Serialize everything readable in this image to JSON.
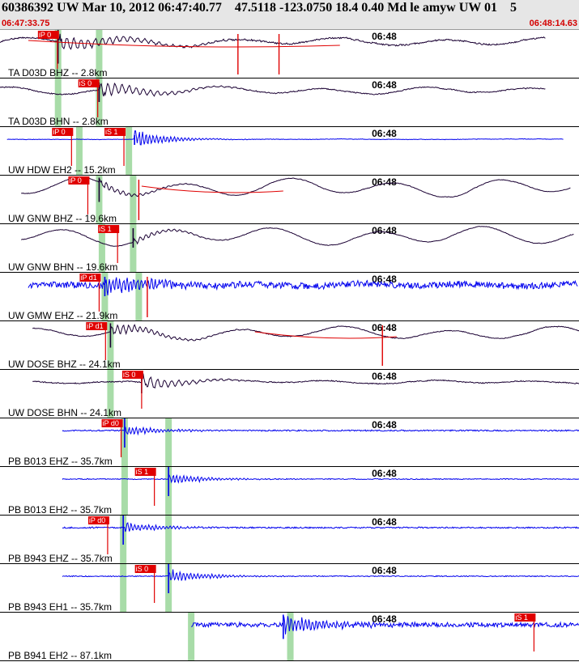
{
  "header": {
    "title": "60386392 UW Mar 10, 2012 06:47:40.77    47.5118 -123.0750 18.4 0.40 Md le amyw UW 01    5",
    "start_time": "06:47:33.75",
    "end_time": "06:48:14.63"
  },
  "colors": {
    "header_bg": "#e6e6e6",
    "time_text": "#d40000",
    "pick": "#e00000",
    "window": "#a8dca8",
    "dark_trace": "#1a0033",
    "blue_trace": "#0000ee"
  },
  "traces": [
    {
      "label": "TA D03D BHZ -- 2.8km",
      "tick": "06:48",
      "style": "dark",
      "picks": [
        {
          "text": "iP 0",
          "time": 4.05
        }
      ],
      "windows": [
        4.1,
        7.0
      ],
      "onset": 4.1,
      "samp": 3.8,
      "start": 0.0,
      "end": 38.5,
      "noise": 0.06,
      "lp": 0.35,
      "amp": 0.75,
      "decay": 4.5,
      "freq": 2.0,
      "sine": 0.4,
      "curve": [
        2.0,
        24.0
      ],
      "ticks": [
        16.8,
        19.7
      ]
    },
    {
      "label": "TA D03D BHN -- 2.8km",
      "tick": "06:48",
      "style": "dark",
      "picks": [
        {
          "text": "iS 0",
          "time": 6.9
        }
      ],
      "windows": [
        4.1,
        7.0
      ],
      "onset": 7.0,
      "samp": 2.0,
      "start": 0.0,
      "end": 38.5,
      "noise": 0.04,
      "lp": 0.35,
      "amp": 0.75,
      "decay": 3.5,
      "freq": 2.0,
      "sine": 0.35,
      "curve": [],
      "ticks": []
    },
    {
      "label": "UW HDW EH2 -- 15.2km",
      "tick": "06:48",
      "style": "blue",
      "picks": [
        {
          "text": "iP 0",
          "time": 5.05
        },
        {
          "text": "iS 1",
          "time": 8.75
        }
      ],
      "windows": [
        5.6,
        9.1
      ],
      "onset": 9.5,
      "samp": 1.0,
      "start": 0.5,
      "end": 39.8,
      "noise": 0.02,
      "lp": 0.15,
      "amp": 0.9,
      "decay": 2.0,
      "freq": 4.0,
      "sine": 0.0,
      "curve": [],
      "ticks": []
    },
    {
      "label": "UW GNW BHZ -- 19.6km",
      "tick": "06:48",
      "style": "dark",
      "picks": [
        {
          "text": "iP 0",
          "time": 6.2
        }
      ],
      "windows": [
        7.0,
        9.4
      ],
      "onset": 7.0,
      "samp": 2.5,
      "start": 1.5,
      "end": 40.3,
      "noise": 0.02,
      "lp": 0.35,
      "amp": 0.4,
      "decay": 2.5,
      "freq": 2.5,
      "sine": 0.85,
      "curve": [
        10.0,
        20.0
      ],
      "ticks": [
        9.8
      ]
    },
    {
      "label": "UW GNW BHN -- 19.6km",
      "tick": "06:48",
      "style": "dark",
      "picks": [
        {
          "text": "iS 1",
          "time": 8.3
        }
      ],
      "windows": [
        7.2,
        9.4
      ],
      "onset": 9.4,
      "samp": 2.0,
      "start": 1.5,
      "end": 40.5,
      "noise": 0.02,
      "lp": 0.35,
      "amp": 0.35,
      "decay": 2.5,
      "freq": 2.5,
      "sine": 0.85,
      "curve": [],
      "ticks": []
    },
    {
      "label": "UW GMW EHZ -- 21.9km",
      "tick": "06:48",
      "style": "blue",
      "picks": [
        {
          "text": "iP d1",
          "time": 7.0
        }
      ],
      "windows": [
        7.4,
        9.8
      ],
      "onset": 7.4,
      "samp": 2.0,
      "start": 2.0,
      "end": 40.8,
      "noise": 0.28,
      "lp": 0.0,
      "amp": 0.9,
      "decay": 3.5,
      "freq": 4.0,
      "sine": 0.12,
      "curve": [],
      "ticks": [
        10.4
      ]
    },
    {
      "label": "UW DOSE BHZ -- 24.1km",
      "tick": "06:48",
      "style": "dark",
      "picks": [
        {
          "text": "iP d1",
          "time": 7.45
        }
      ],
      "windows": [
        7.8
      ],
      "onset": 7.8,
      "samp": 2.5,
      "start": 2.3,
      "end": 41.0,
      "noise": 0.03,
      "lp": 0.35,
      "amp": 0.6,
      "decay": 3.0,
      "freq": 2.5,
      "sine": 0.6,
      "curve": [
        18.0,
        28.0
      ],
      "ticks": [
        27.0
      ]
    },
    {
      "label": "UW DOSE BHN -- 24.1km",
      "tick": "06:48",
      "style": "dark",
      "picks": [
        {
          "text": "iS 0",
          "time": 10.0
        }
      ],
      "windows": [
        7.8
      ],
      "onset": 10.0,
      "samp": 2.0,
      "start": 2.3,
      "end": 41.0,
      "noise": 0.04,
      "lp": 0.35,
      "amp": 0.75,
      "decay": 2.5,
      "freq": 2.0,
      "sine": 0.2,
      "curve": [],
      "ticks": []
    },
    {
      "label": "PB B013 EHZ -- 35.7km",
      "tick": "06:48",
      "style": "blue",
      "picks": [
        {
          "text": "iP d0",
          "time": 8.55
        }
      ],
      "windows": [
        8.8,
        11.9
      ],
      "onset": 8.8,
      "samp": 3.0,
      "start": 4.4,
      "end": 43.2,
      "noise": 0.06,
      "lp": 0.0,
      "amp": 0.45,
      "decay": 2.5,
      "freq": 4.0,
      "sine": 0.0,
      "curve": [],
      "ticks": []
    },
    {
      "label": "PB B013 EH2 -- 35.7km",
      "tick": "06:48",
      "style": "blue",
      "picks": [
        {
          "text": "iS 1",
          "time": 10.9
        }
      ],
      "windows": [
        8.8,
        11.9
      ],
      "onset": 11.9,
      "samp": 3.0,
      "start": 4.4,
      "end": 43.2,
      "noise": 0.04,
      "lp": 0.0,
      "amp": 0.5,
      "decay": 2.5,
      "freq": 4.0,
      "sine": 0.0,
      "curve": [],
      "ticks": []
    },
    {
      "label": "PB B943 EHZ -- 35.7km",
      "tick": "06:48",
      "style": "blue",
      "picks": [
        {
          "text": "iP d0",
          "time": 7.6
        }
      ],
      "windows": [
        8.7,
        11.9
      ],
      "onset": 8.7,
      "samp": 3.0,
      "start": 4.4,
      "end": 43.2,
      "noise": 0.06,
      "lp": 0.0,
      "amp": 0.5,
      "decay": 2.5,
      "freq": 4.0,
      "sine": 0.0,
      "curve": [],
      "ticks": []
    },
    {
      "label": "PB B943 EH1 -- 35.7km",
      "tick": "06:48",
      "style": "blue",
      "picks": [
        {
          "text": "iS 0",
          "time": 10.9
        }
      ],
      "windows": [
        8.7,
        11.9
      ],
      "onset": 11.9,
      "samp": 3.0,
      "start": 4.4,
      "end": 43.2,
      "noise": 0.04,
      "lp": 0.0,
      "amp": 0.6,
      "decay": 2.5,
      "freq": 4.0,
      "sine": 0.0,
      "curve": [],
      "ticks": []
    },
    {
      "label": "PB B941 EH2 -- 87.1km",
      "tick": "06:48",
      "style": "blue",
      "picks": [
        {
          "text": "iS 1",
          "time": 37.7
        }
      ],
      "windows": [
        13.5,
        20.5
      ],
      "onset": 20.0,
      "samp": 2.5,
      "start": 13.5,
      "end": 52.5,
      "noise": 0.2,
      "lp": 0.0,
      "amp": 0.9,
      "decay": 3.0,
      "freq": 4.0,
      "sine": 0.0,
      "curve": [],
      "ticks": []
    }
  ]
}
